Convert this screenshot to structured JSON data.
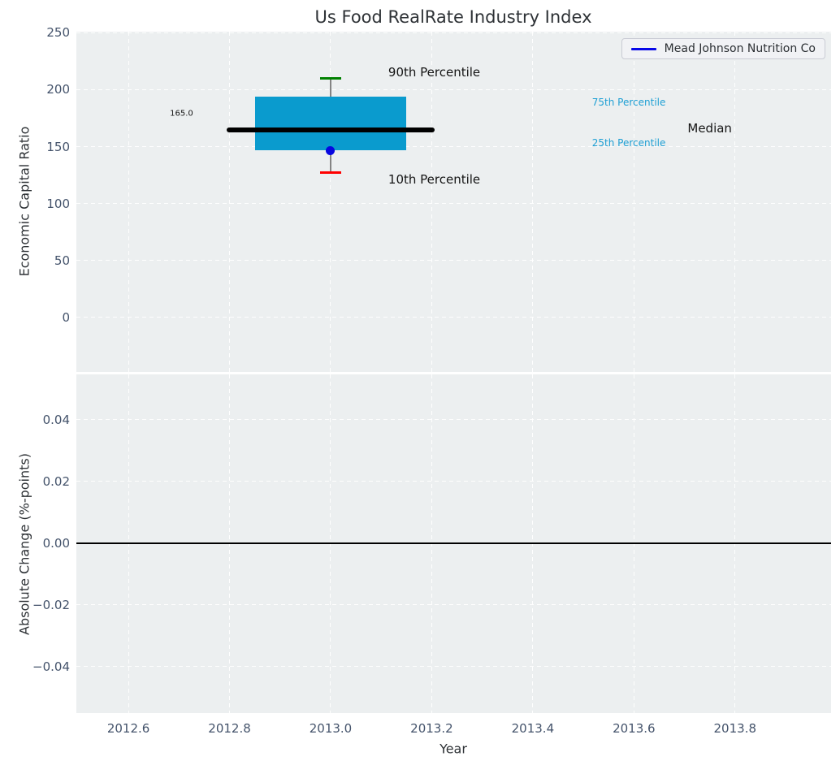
{
  "figure": {
    "title": "Us Food RealRate Industry Index",
    "background_color": "#ffffff",
    "panel_background_color": "#eceff0",
    "grid_color": "#ffffff",
    "tick_label_color": "#44536b",
    "text_color": "#2e3236"
  },
  "legend": {
    "label": "Mead Johnson Nutrition Co",
    "line_color": "#0707e8",
    "position": "upper right"
  },
  "chart_data": [
    {
      "type": "box",
      "panel": "top",
      "title": "Us Food RealRate Industry Index",
      "ylabel": "Economic Capital Ratio",
      "xlim": [
        2012.497,
        2013.99
      ],
      "ylim": [
        -48,
        251
      ],
      "grid": true,
      "ytick_values": [
        0,
        50,
        100,
        150,
        200,
        250
      ],
      "ytick_labels": [
        "0",
        "50",
        "100",
        "150",
        "200",
        "250"
      ],
      "xtick_values": [
        2012.6,
        2012.8,
        2013.0,
        2013.2,
        2013.4,
        2013.6,
        2013.8
      ],
      "box": {
        "x_center": 2013.0,
        "box_x_range": [
          2012.85,
          2013.15
        ],
        "median": 165.0,
        "median_line_x_range": [
          2012.795,
          2013.205
        ],
        "q25": 147,
        "q75": 194,
        "p10": 127.5,
        "p90": 210,
        "cap_width_years": 0.031,
        "box_color": "#0a9bce",
        "median_color": "#000000",
        "whisker_color": "#848484",
        "p90_cap_color": "#008000",
        "p10_cap_color": "#ff0000"
      },
      "company_point": {
        "name": "Mead Johnson Nutrition Co",
        "x": 2013.0,
        "y": 146.5,
        "color": "#0707e0"
      },
      "annotations": [
        {
          "text": "90th Percentile",
          "x": 2013.205,
          "y": 215,
          "color": "#141414",
          "size": 15
        },
        {
          "text": "10th Percentile",
          "x": 2013.205,
          "y": 121,
          "color": "#141414",
          "size": 15
        },
        {
          "text": "75th Percentile",
          "x": 2013.59,
          "y": 189,
          "color": "#1d9fd4",
          "size": 12
        },
        {
          "text": "25th Percentile",
          "x": 2013.59,
          "y": 153,
          "color": "#1d9fd4",
          "size": 12
        },
        {
          "text": "Median",
          "x": 2013.75,
          "y": 166,
          "color": "#141414",
          "size": 15
        },
        {
          "text": "165.0",
          "x": 2012.705,
          "y": 179,
          "color": "#141414",
          "size": 10
        }
      ]
    },
    {
      "type": "line",
      "panel": "bottom",
      "ylabel": "Absolute Change (%-points)",
      "xlabel": "Year",
      "xlim": [
        2012.497,
        2013.99
      ],
      "ylim": [
        -0.055,
        0.0547
      ],
      "grid": true,
      "ytick_values": [
        0.04,
        0.02,
        0.0,
        -0.02,
        -0.04
      ],
      "ytick_labels": [
        "0.04",
        "0.02",
        "0.00",
        "−0.02",
        "−0.04"
      ],
      "xtick_values": [
        2012.6,
        2012.8,
        2013.0,
        2013.2,
        2013.4,
        2013.6,
        2013.8
      ],
      "xtick_labels": [
        "2012.6",
        "2012.8",
        "2013.0",
        "2013.2",
        "2013.4",
        "2013.6",
        "2013.8"
      ],
      "zero_line": {
        "y": 0.0,
        "color": "#000000"
      }
    }
  ]
}
